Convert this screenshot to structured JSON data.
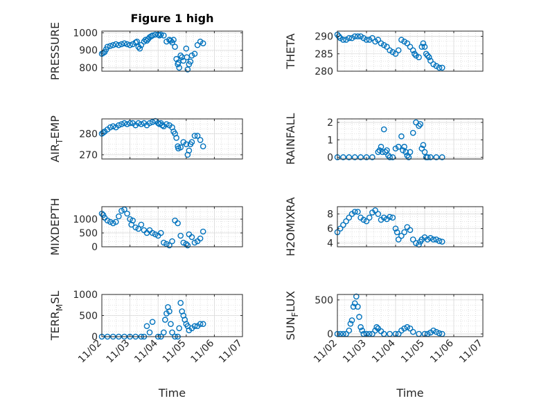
{
  "figure": {
    "title": "Figure 1 high",
    "xlabel": "Time"
  },
  "colors": {
    "marker": "#0072BD",
    "axis": "#262626",
    "grid": "#c8c8c8",
    "background": "#ffffff"
  },
  "chart_data": [
    {
      "type": "scatter",
      "title": "Figure 1 high",
      "xlabel": "",
      "ylabel": "PRESSURE",
      "xlim": [
        0,
        5
      ],
      "ylim": [
        780,
        1010
      ],
      "yticks": [
        800,
        900,
        1000
      ],
      "xticks": [
        0,
        1,
        2,
        3,
        4,
        5
      ],
      "xticklabels": [],
      "grid": true,
      "x": [
        0,
        0.05,
        0.1,
        0.15,
        0.2,
        0.3,
        0.4,
        0.5,
        0.6,
        0.7,
        0.8,
        0.9,
        1.0,
        1.1,
        1.2,
        1.25,
        1.3,
        1.35,
        1.4,
        1.5,
        1.55,
        1.6,
        1.65,
        1.7,
        1.75,
        1.8,
        1.9,
        2.0,
        2.05,
        2.1,
        2.2,
        2.3,
        2.4,
        2.45,
        2.5,
        2.55,
        2.6,
        2.65,
        2.7,
        2.72,
        2.75,
        2.8,
        2.85,
        2.9,
        3.0,
        3.02,
        3.05,
        3.1,
        3.15,
        3.2,
        3.3,
        3.4,
        3.5,
        3.6
      ],
      "y": [
        880,
        885,
        890,
        905,
        920,
        925,
        930,
        935,
        930,
        935,
        940,
        935,
        930,
        935,
        945,
        950,
        920,
        910,
        930,
        950,
        960,
        955,
        965,
        975,
        980,
        985,
        990,
        990,
        985,
        990,
        985,
        950,
        960,
        955,
        945,
        960,
        920,
        850,
        820,
        830,
        800,
        870,
        860,
        840,
        910,
        860,
        790,
        820,
        835,
        870,
        880,
        930,
        950,
        940
      ]
    },
    {
      "type": "scatter",
      "title": "",
      "xlabel": "",
      "ylabel": "THETA",
      "xlim": [
        0,
        5
      ],
      "ylim": [
        280,
        291.5
      ],
      "yticks": [
        280,
        285,
        290
      ],
      "xticks": [
        0,
        1,
        2,
        3,
        4,
        5
      ],
      "xticklabels": [],
      "grid": true,
      "x": [
        0,
        0.05,
        0.1,
        0.2,
        0.3,
        0.4,
        0.5,
        0.6,
        0.7,
        0.8,
        0.9,
        1.0,
        1.1,
        1.2,
        1.3,
        1.4,
        1.5,
        1.6,
        1.7,
        1.8,
        1.9,
        2.0,
        2.1,
        2.2,
        2.3,
        2.4,
        2.5,
        2.6,
        2.65,
        2.7,
        2.8,
        2.9,
        2.95,
        3.0,
        3.05,
        3.1,
        3.15,
        3.2,
        3.3,
        3.4,
        3.5,
        3.6
      ],
      "y": [
        290.5,
        290,
        289.5,
        289,
        289,
        289.5,
        289.5,
        290,
        290,
        290,
        289.5,
        289,
        289,
        289.5,
        288.5,
        289,
        288,
        287.5,
        287,
        286,
        285.5,
        285,
        286,
        289,
        288.5,
        288,
        287,
        286,
        285,
        284.5,
        284,
        287,
        288,
        287,
        285,
        284.5,
        284,
        283,
        282,
        281.5,
        281,
        281
      ]
    },
    {
      "type": "scatter",
      "title": "",
      "xlabel": "",
      "ylabel": "AIR_TEMP",
      "xlim": [
        0,
        5
      ],
      "ylim": [
        268,
        287
      ],
      "yticks": [
        270,
        280
      ],
      "xticks": [
        0,
        1,
        2,
        3,
        4,
        5
      ],
      "xticklabels": [],
      "grid": true,
      "x": [
        0,
        0.05,
        0.1,
        0.2,
        0.3,
        0.4,
        0.5,
        0.6,
        0.7,
        0.8,
        0.9,
        1.0,
        1.1,
        1.2,
        1.3,
        1.4,
        1.5,
        1.6,
        1.7,
        1.8,
        1.9,
        2.0,
        2.05,
        2.1,
        2.15,
        2.2,
        2.3,
        2.4,
        2.5,
        2.55,
        2.6,
        2.65,
        2.7,
        2.72,
        2.8,
        2.9,
        3.0,
        3.05,
        3.1,
        3.15,
        3.2,
        3.3,
        3.4,
        3.5,
        3.6
      ],
      "y": [
        280,
        280.5,
        281,
        282,
        283,
        283.5,
        283,
        284,
        284.5,
        285,
        284.5,
        285,
        285,
        284,
        285,
        284.5,
        285,
        284,
        285,
        285.5,
        286,
        285,
        284.5,
        285,
        284,
        283.5,
        284.5,
        284,
        283,
        281,
        280,
        278,
        274,
        273,
        273.5,
        276,
        275,
        270,
        272,
        275,
        276,
        279,
        279,
        277,
        274
      ]
    },
    {
      "type": "scatter",
      "title": "",
      "xlabel": "",
      "ylabel": "RAINFALL",
      "xlim": [
        0,
        5
      ],
      "ylim": [
        -0.1,
        2.2
      ],
      "yticks": [
        0,
        1,
        2
      ],
      "xticks": [
        0,
        1,
        2,
        3,
        4,
        5
      ],
      "xticklabels": [],
      "grid": true,
      "x": [
        0,
        0.2,
        0.4,
        0.6,
        0.8,
        1.0,
        1.2,
        1.4,
        1.45,
        1.5,
        1.55,
        1.6,
        1.65,
        1.7,
        1.75,
        1.8,
        1.9,
        2.0,
        2.1,
        2.2,
        2.25,
        2.3,
        2.35,
        2.4,
        2.45,
        2.5,
        2.6,
        2.7,
        2.8,
        2.85,
        2.9,
        2.95,
        3.0,
        3.05,
        3.1,
        3.2,
        3.4,
        3.6
      ],
      "y": [
        0,
        0,
        0,
        0,
        0,
        0,
        0,
        0.3,
        0.4,
        0.6,
        0.3,
        1.6,
        0.3,
        0.4,
        0.1,
        0,
        0,
        0.5,
        0.6,
        1.2,
        0.4,
        0.6,
        0.3,
        0.1,
        0,
        0.3,
        1.4,
        2.0,
        1.8,
        1.9,
        0.5,
        0.7,
        0.3,
        0,
        0,
        0,
        0,
        0
      ]
    },
    {
      "type": "scatter",
      "title": "",
      "xlabel": "",
      "ylabel": "MIXDEPTH",
      "xlim": [
        0,
        5
      ],
      "ylim": [
        0,
        1450
      ],
      "yticks": [
        0,
        500,
        1000
      ],
      "xticks": [
        0,
        1,
        2,
        3,
        4,
        5
      ],
      "xticklabels": [],
      "grid": true,
      "x": [
        0,
        0.05,
        0.1,
        0.2,
        0.3,
        0.4,
        0.5,
        0.6,
        0.7,
        0.8,
        0.9,
        1.0,
        1.05,
        1.1,
        1.2,
        1.3,
        1.4,
        1.5,
        1.6,
        1.7,
        1.8,
        1.9,
        2.0,
        2.1,
        2.2,
        2.3,
        2.4,
        2.5,
        2.6,
        2.7,
        2.8,
        2.9,
        3.0,
        3.05,
        3.1,
        3.2,
        3.3,
        3.4,
        3.5,
        3.6
      ],
      "y": [
        1200,
        1150,
        1050,
        950,
        900,
        850,
        900,
        1100,
        1300,
        1350,
        1200,
        1000,
        800,
        950,
        700,
        650,
        800,
        600,
        500,
        600,
        500,
        450,
        400,
        500,
        150,
        100,
        50,
        200,
        950,
        850,
        400,
        150,
        100,
        50,
        450,
        350,
        150,
        200,
        300,
        550
      ]
    },
    {
      "type": "scatter",
      "title": "",
      "xlabel": "",
      "ylabel": "H2OMIXRA",
      "xlim": [
        0,
        5
      ],
      "ylim": [
        3.5,
        9
      ],
      "yticks": [
        4,
        6,
        8
      ],
      "xticks": [
        0,
        1,
        2,
        3,
        4,
        5
      ],
      "xticklabels": [],
      "grid": true,
      "x": [
        0,
        0.1,
        0.2,
        0.3,
        0.4,
        0.5,
        0.6,
        0.7,
        0.8,
        0.9,
        1.0,
        1.1,
        1.2,
        1.3,
        1.4,
        1.5,
        1.6,
        1.7,
        1.8,
        1.9,
        2.0,
        2.05,
        2.1,
        2.2,
        2.3,
        2.4,
        2.5,
        2.6,
        2.7,
        2.8,
        2.85,
        2.9,
        3.0,
        3.1,
        3.2,
        3.3,
        3.4,
        3.5,
        3.6
      ],
      "y": [
        5.5,
        6,
        6.5,
        7,
        7.5,
        8,
        8.3,
        8.3,
        7.5,
        7.2,
        7,
        7.5,
        8.2,
        8.5,
        8,
        7.2,
        7.5,
        7.3,
        7.6,
        7.5,
        6,
        5.5,
        4.5,
        5,
        5.5,
        6.2,
        5.8,
        4.5,
        4,
        3.8,
        4.2,
        4.5,
        4.8,
        4.5,
        4.7,
        4.5,
        4.5,
        4.3,
        4.2
      ]
    },
    {
      "type": "scatter",
      "title": "",
      "xlabel": "Time",
      "ylabel": "TERR_MSL",
      "xlim": [
        0,
        5
      ],
      "ylim": [
        0,
        1000
      ],
      "yticks": [
        0,
        500,
        1000
      ],
      "xticks": [
        0,
        1,
        2,
        3,
        4,
        5
      ],
      "xticklabels": [
        "11/02",
        "11/03",
        "11/04",
        "11/05",
        "11/06",
        "11/07"
      ],
      "grid": true,
      "x": [
        0,
        0.2,
        0.4,
        0.6,
        0.8,
        1.0,
        1.2,
        1.4,
        1.5,
        1.6,
        1.7,
        1.8,
        2.0,
        2.1,
        2.2,
        2.25,
        2.3,
        2.35,
        2.4,
        2.45,
        2.5,
        2.6,
        2.7,
        2.75,
        2.8,
        2.85,
        2.9,
        2.95,
        3.0,
        3.05,
        3.1,
        3.2,
        3.3,
        3.4,
        3.5,
        3.6
      ],
      "y": [
        0,
        0,
        0,
        0,
        0,
        0,
        0,
        0,
        0,
        250,
        100,
        350,
        0,
        0,
        100,
        400,
        550,
        700,
        600,
        300,
        100,
        0,
        0,
        200,
        800,
        600,
        500,
        400,
        300,
        250,
        150,
        200,
        250,
        250,
        300,
        300
      ]
    },
    {
      "type": "scatter",
      "title": "",
      "xlabel": "Time",
      "ylabel": "SUN_FLUX",
      "xlim": [
        0,
        5
      ],
      "ylim": [
        -40,
        580
      ],
      "yticks": [
        0,
        500
      ],
      "xticks": [
        0,
        1,
        2,
        3,
        4,
        5
      ],
      "xticklabels": [
        "11/02",
        "11/03",
        "11/04",
        "11/05",
        "11/06",
        "11/07"
      ],
      "grid": true,
      "x": [
        0,
        0.1,
        0.2,
        0.3,
        0.4,
        0.45,
        0.5,
        0.55,
        0.6,
        0.65,
        0.7,
        0.75,
        0.8,
        0.85,
        0.9,
        1.0,
        1.1,
        1.2,
        1.3,
        1.35,
        1.4,
        1.5,
        1.6,
        1.8,
        2.0,
        2.1,
        2.2,
        2.3,
        2.4,
        2.5,
        2.6,
        2.8,
        3.0,
        3.1,
        3.2,
        3.3,
        3.4,
        3.5,
        3.6
      ],
      "y": [
        0,
        0,
        0,
        0,
        50,
        150,
        200,
        400,
        450,
        550,
        400,
        250,
        100,
        50,
        0,
        0,
        0,
        0,
        50,
        100,
        80,
        40,
        0,
        0,
        0,
        0,
        50,
        80,
        100,
        80,
        30,
        0,
        0,
        0,
        20,
        50,
        30,
        10,
        0
      ]
    }
  ]
}
